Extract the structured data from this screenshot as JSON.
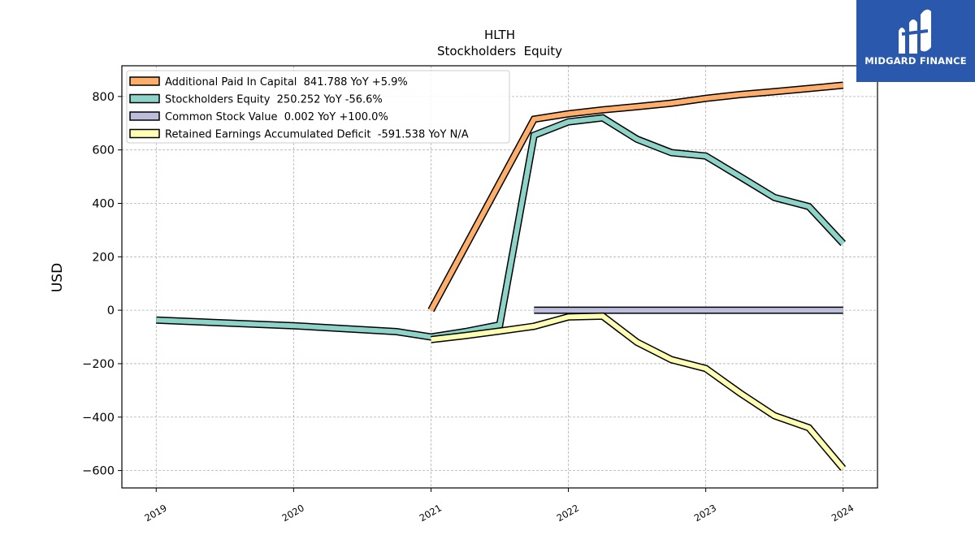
{
  "chart_data": {
    "type": "line",
    "title": "HLTH",
    "subtitle": "Stockholders  Equity",
    "ylabel": "USD",
    "xlabel": "",
    "ylim": [
      -665,
      915
    ],
    "xlim": [
      2018.75,
      2024.25
    ],
    "yticks": [
      -600,
      -400,
      -200,
      0,
      200,
      400,
      600,
      800
    ],
    "ytick_labels": [
      "−600",
      "−400",
      "−200",
      "0",
      "200",
      "400",
      "600",
      "800"
    ],
    "xticks": [
      2019,
      2020,
      2021,
      2022,
      2023,
      2024
    ],
    "xtick_labels": [
      "2019",
      "2020",
      "2021",
      "2022",
      "2023",
      "2024"
    ],
    "grid": true,
    "legend_position": "top-left",
    "series": [
      {
        "name": "Additional Paid In Capital  841.788 YoY +5.9%",
        "color": "#fdae6b",
        "x": [
          2021.0,
          2021.75,
          2022.0,
          2022.25,
          2022.5,
          2022.75,
          2023.0,
          2023.25,
          2023.5,
          2023.75,
          2024.0
        ],
        "y": [
          0,
          715,
          735,
          750,
          762,
          775,
          793,
          807,
          818,
          830,
          842
        ]
      },
      {
        "name": "Stockholders Equity  250.252 YoY -56.6%",
        "color": "#8dd3c7",
        "x": [
          2019.0,
          2020.0,
          2020.75,
          2021.0,
          2021.25,
          2021.5,
          2021.75,
          2022.0,
          2022.25,
          2022.5,
          2022.75,
          2023.0,
          2023.25,
          2023.5,
          2023.75,
          2024.0
        ],
        "y": [
          -37,
          -58,
          -80,
          -100,
          -80,
          -55,
          655,
          705,
          720,
          640,
          590,
          577,
          500,
          422,
          388,
          250
        ]
      },
      {
        "name": "Common Stock Value  0.002 YoY +100.0%",
        "color": "#bcbddc",
        "x": [
          2021.75,
          2022.0,
          2022.25,
          2022.5,
          2022.75,
          2023.0,
          2023.25,
          2023.5,
          2023.75,
          2024.0
        ],
        "y": [
          0.001,
          0.001,
          0.001,
          0.001,
          0.001,
          0.001,
          0.001,
          0.001,
          0.002,
          0.002
        ]
      },
      {
        "name": "Retained Earnings Accumulated Deficit  -591.538 YoY N/A",
        "color": "#ffffb3",
        "x": [
          2021.0,
          2021.25,
          2021.5,
          2021.75,
          2022.0,
          2022.25,
          2022.5,
          2022.75,
          2023.0,
          2023.25,
          2023.5,
          2023.75,
          2024.0
        ],
        "y": [
          -110,
          -95,
          -78,
          -60,
          -25,
          -22,
          -120,
          -185,
          -218,
          -310,
          -395,
          -440,
          -592
        ]
      }
    ]
  },
  "logo": {
    "text": "MIDGARD FINANCE",
    "color": "#2a58ad"
  }
}
